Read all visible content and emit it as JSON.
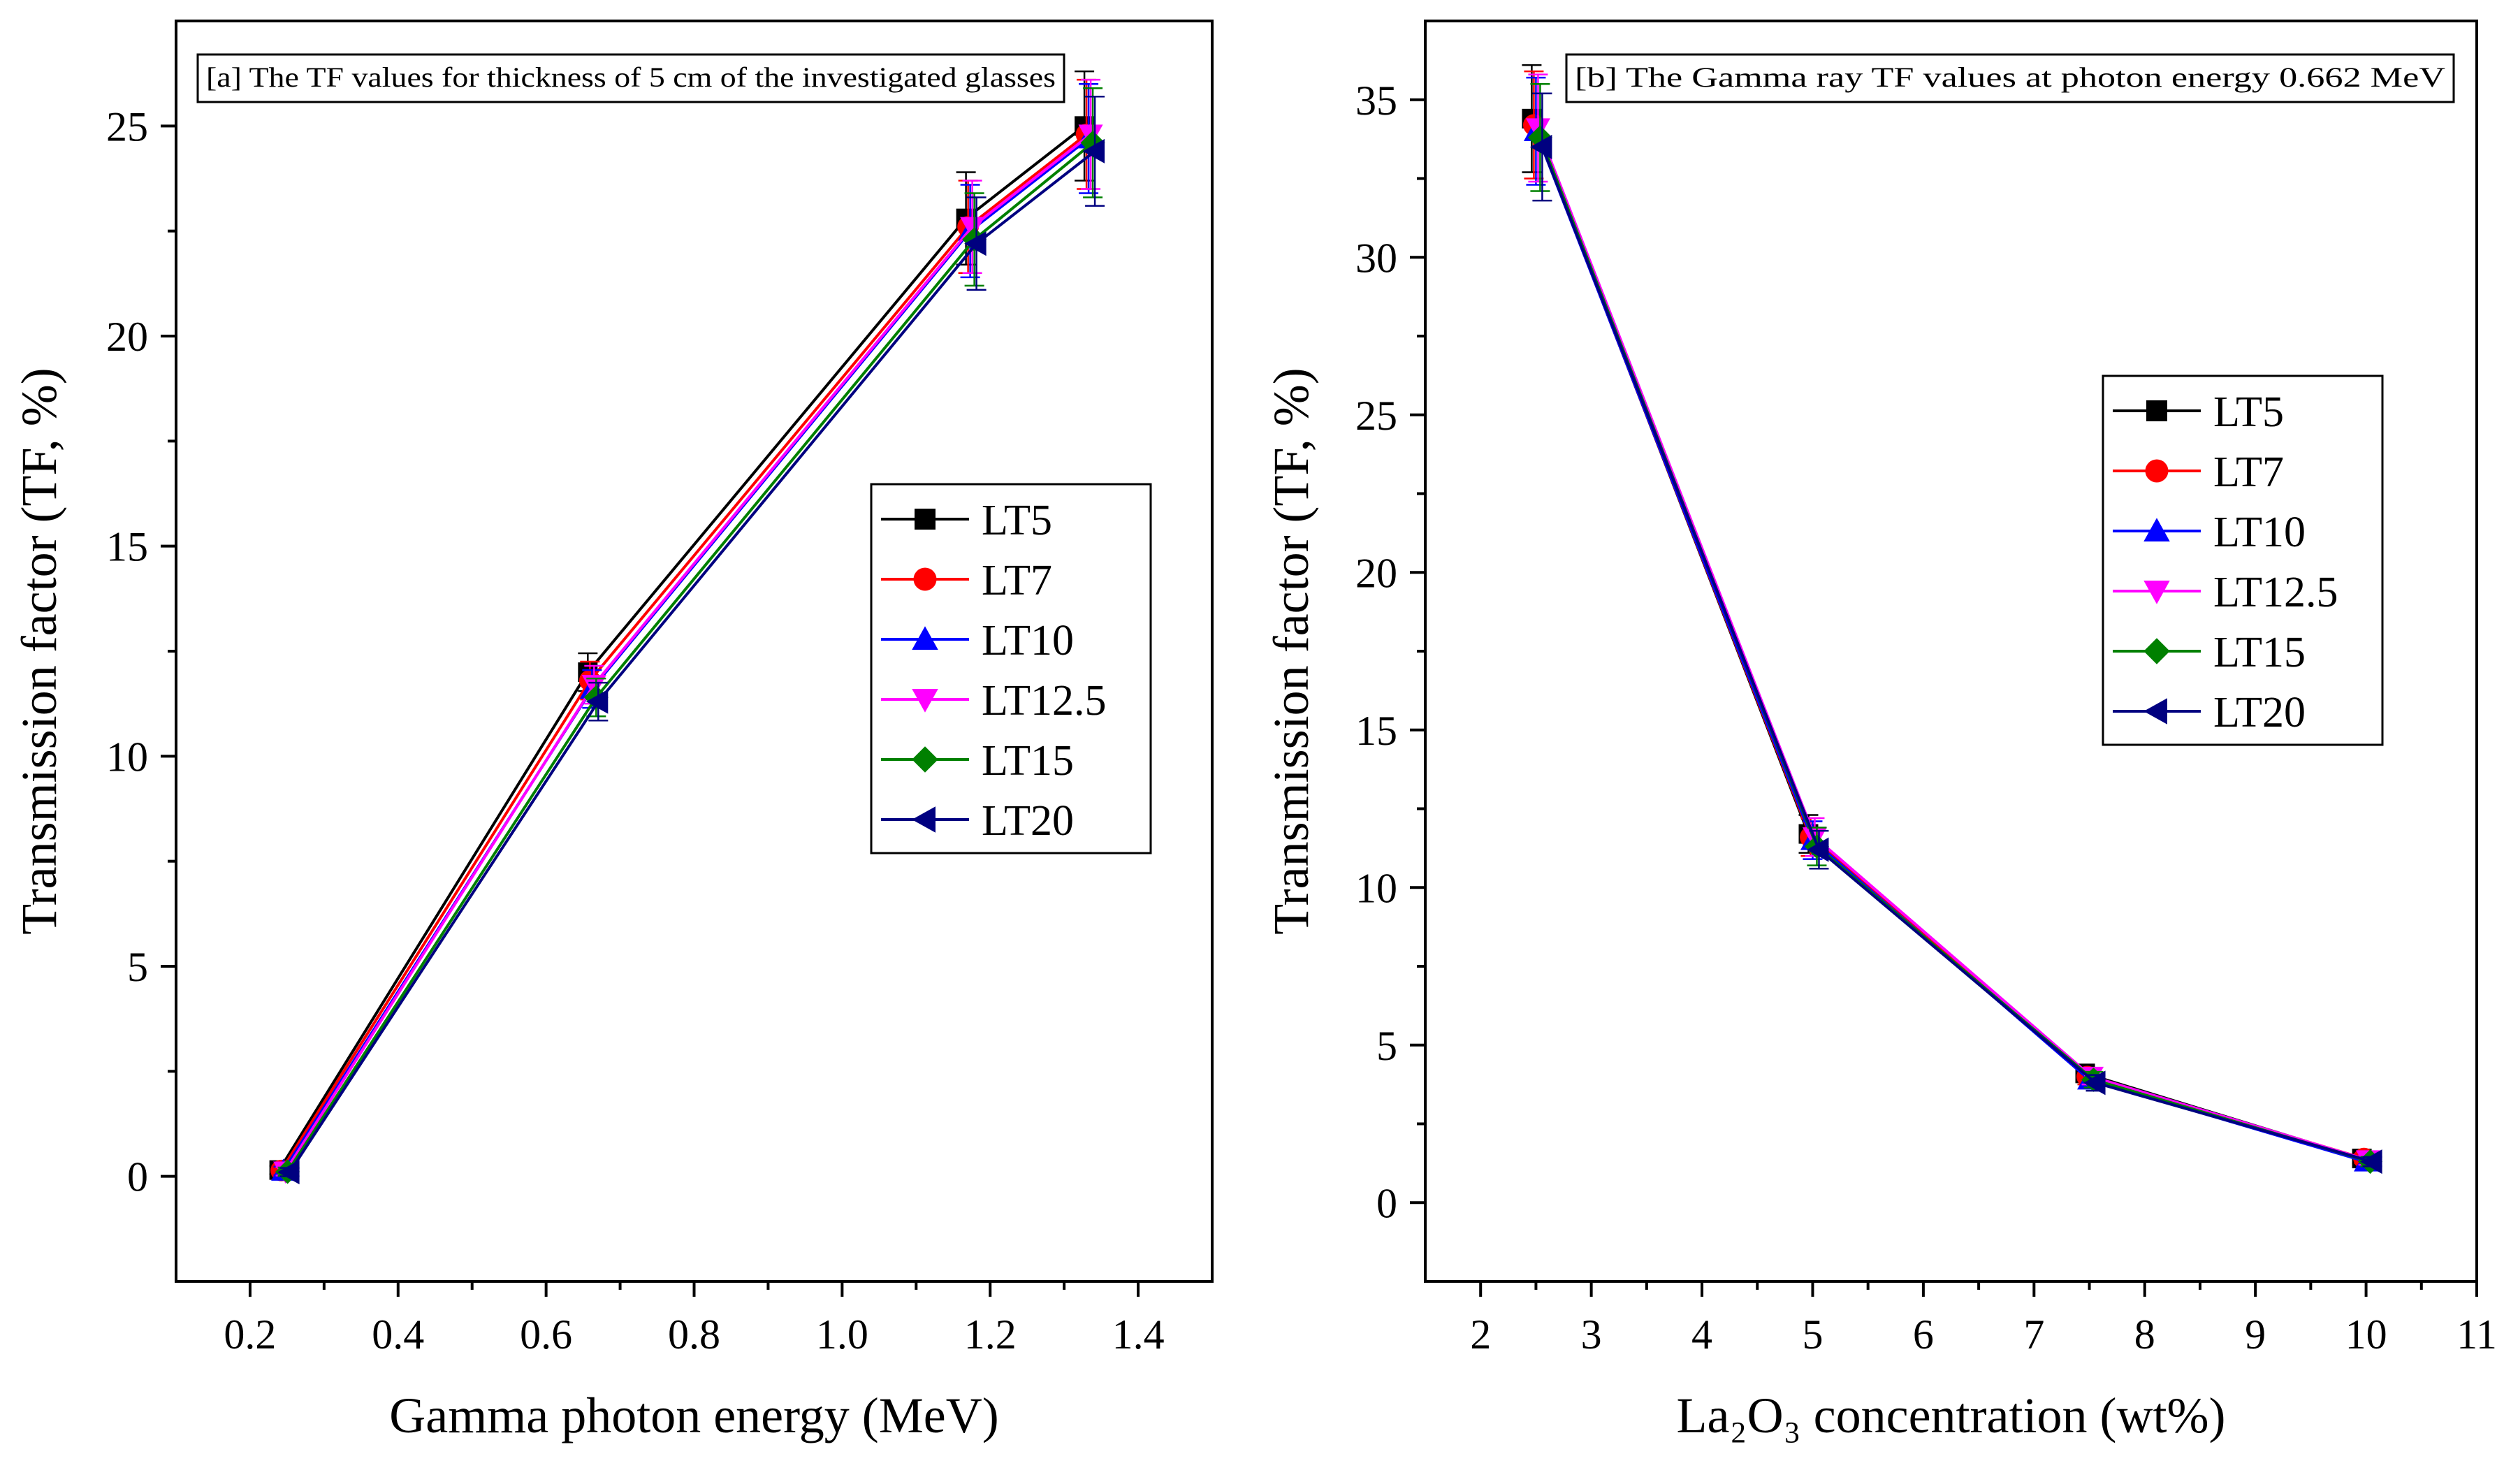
{
  "chart_data": [
    {
      "type": "line",
      "annotation": "[a] The TF values for thickness of 5 cm of the investigated glasses",
      "xlabel": "Gamma photon energy (MeV)",
      "ylabel": "Transmission factor (TF, %)",
      "xlim": [
        0.1,
        1.5
      ],
      "ylim": [
        -2.5,
        27.5
      ],
      "xticks": [
        0.2,
        0.4,
        0.6,
        0.8,
        1.0,
        1.2,
        1.4
      ],
      "xtick_labels": [
        "0.2",
        "0.4",
        "0.6",
        "0.8",
        "1.0",
        "1.2",
        "1.4"
      ],
      "yticks": [
        0,
        5,
        10,
        15,
        20,
        25
      ],
      "ytick_labels": [
        "0",
        "5",
        "10",
        "15",
        "20",
        "25"
      ],
      "legend_position": "center-right",
      "x": [
        0.245,
        0.662,
        1.173,
        1.333
      ],
      "series": [
        {
          "name": "LT5",
          "color": "#000000",
          "marker": "square",
          "values": [
            0.15,
            12.0,
            22.8,
            25.0
          ],
          "errors": [
            0.1,
            0.45,
            1.1,
            1.3
          ]
        },
        {
          "name": "LT7",
          "color": "#ff0000",
          "marker": "circle",
          "values": [
            0.14,
            11.8,
            22.6,
            24.8
          ],
          "errors": [
            0.1,
            0.45,
            1.1,
            1.3
          ]
        },
        {
          "name": "LT10",
          "color": "#0000ff",
          "marker": "triangle-up",
          "values": [
            0.13,
            11.6,
            22.5,
            24.7
          ],
          "errors": [
            0.1,
            0.45,
            1.1,
            1.3
          ]
        },
        {
          "name": "LT12.5",
          "color": "#ff00ff",
          "marker": "triangle-down",
          "values": [
            0.12,
            11.7,
            22.6,
            24.8
          ],
          "errors": [
            0.1,
            0.45,
            1.1,
            1.3
          ]
        },
        {
          "name": "LT15",
          "color": "#008000",
          "marker": "diamond",
          "values": [
            0.11,
            11.4,
            22.3,
            24.6
          ],
          "errors": [
            0.1,
            0.45,
            1.1,
            1.3
          ]
        },
        {
          "name": "LT20",
          "color": "#000080",
          "marker": "triangle-left",
          "values": [
            0.1,
            11.3,
            22.2,
            24.4
          ],
          "errors": [
            0.1,
            0.45,
            1.1,
            1.3
          ]
        }
      ]
    },
    {
      "type": "line",
      "annotation": "[b] The Gamma ray TF values at photon energy 0.662 MeV",
      "xlabel": "La₂O₃ concentration (wt%)",
      "ylabel": "Transmission factor (TF, %)",
      "xlim": [
        1.5,
        11
      ],
      "ylim": [
        -2.5,
        37.5
      ],
      "xticks": [
        2,
        3,
        4,
        5,
        6,
        7,
        8,
        9,
        10,
        11
      ],
      "xtick_labels": [
        "2",
        "3",
        "4",
        "5",
        "6",
        "7",
        "8",
        "9",
        "10",
        "11"
      ],
      "yticks": [
        0,
        5,
        10,
        15,
        20,
        25,
        30,
        35
      ],
      "ytick_labels": [
        "0",
        "5",
        "10",
        "15",
        "20",
        "25",
        "30",
        "35"
      ],
      "legend_position": "upper-right",
      "x": [
        2.5,
        5,
        7.5,
        10
      ],
      "series": [
        {
          "name": "LT5",
          "color": "#000000",
          "marker": "square",
          "values": [
            34.4,
            11.7,
            4.1,
            1.4
          ],
          "errors": [
            1.7,
            0.6,
            0.25,
            0.15
          ]
        },
        {
          "name": "LT7",
          "color": "#ff0000",
          "marker": "circle",
          "values": [
            34.2,
            11.6,
            4.0,
            1.4
          ],
          "errors": [
            1.7,
            0.6,
            0.25,
            0.15
          ]
        },
        {
          "name": "LT10",
          "color": "#0000ff",
          "marker": "triangle-up",
          "values": [
            34.0,
            11.5,
            3.9,
            1.3
          ],
          "errors": [
            1.7,
            0.6,
            0.25,
            0.15
          ]
        },
        {
          "name": "LT12.5",
          "color": "#ff00ff",
          "marker": "triangle-down",
          "values": [
            34.1,
            11.6,
            4.0,
            1.35
          ],
          "errors": [
            1.7,
            0.6,
            0.25,
            0.15
          ]
        },
        {
          "name": "LT15",
          "color": "#008000",
          "marker": "diamond",
          "values": [
            33.8,
            11.3,
            3.9,
            1.3
          ],
          "errors": [
            1.7,
            0.6,
            0.25,
            0.15
          ]
        },
        {
          "name": "LT20",
          "color": "#000080",
          "marker": "triangle-left",
          "values": [
            33.5,
            11.2,
            3.8,
            1.3
          ],
          "errors": [
            1.7,
            0.6,
            0.25,
            0.15
          ]
        }
      ]
    }
  ]
}
